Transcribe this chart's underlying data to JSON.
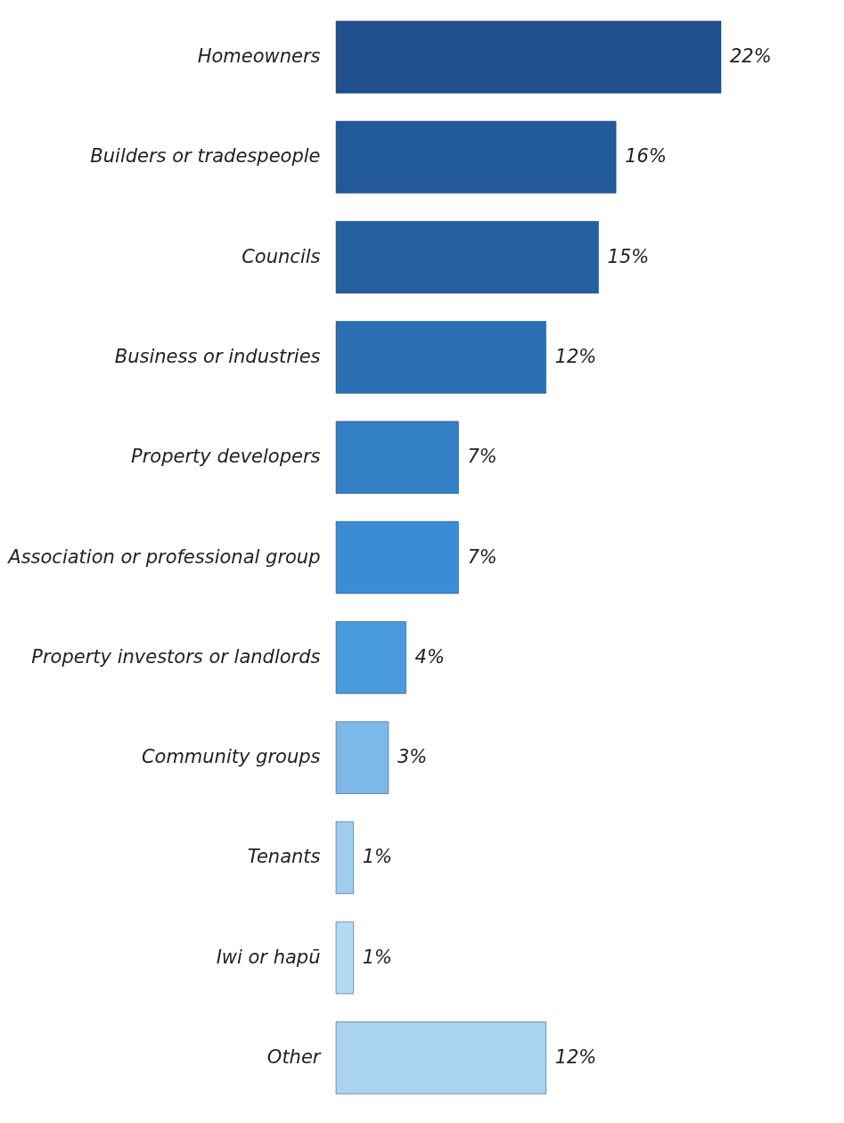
{
  "chart_data": {
    "type": "bar",
    "orientation": "horizontal",
    "categories": [
      "Homeowners",
      "Builders or tradespeople",
      "Councils",
      "Business or industries",
      "Property developers",
      "Association or professional group",
      "Property investors or landlords",
      "Community groups",
      "Tenants",
      "Iwi or hapū",
      "Other"
    ],
    "values": [
      22,
      16,
      15,
      12,
      7,
      7,
      4,
      3,
      1,
      1,
      12
    ],
    "value_labels": [
      "22%",
      "16%",
      "15%",
      "12%",
      "7%",
      "7%",
      "4%",
      "3%",
      "1%",
      "1%",
      "12%"
    ],
    "colors": [
      "#1f4f8e",
      "#22599a",
      "#245f9f",
      "#2a70b3",
      "#3380c6",
      "#3a8dd5",
      "#4a9ade",
      "#7db9e8",
      "#9fcdef",
      "#b3daf4",
      "#a9d3f1"
    ]
  }
}
